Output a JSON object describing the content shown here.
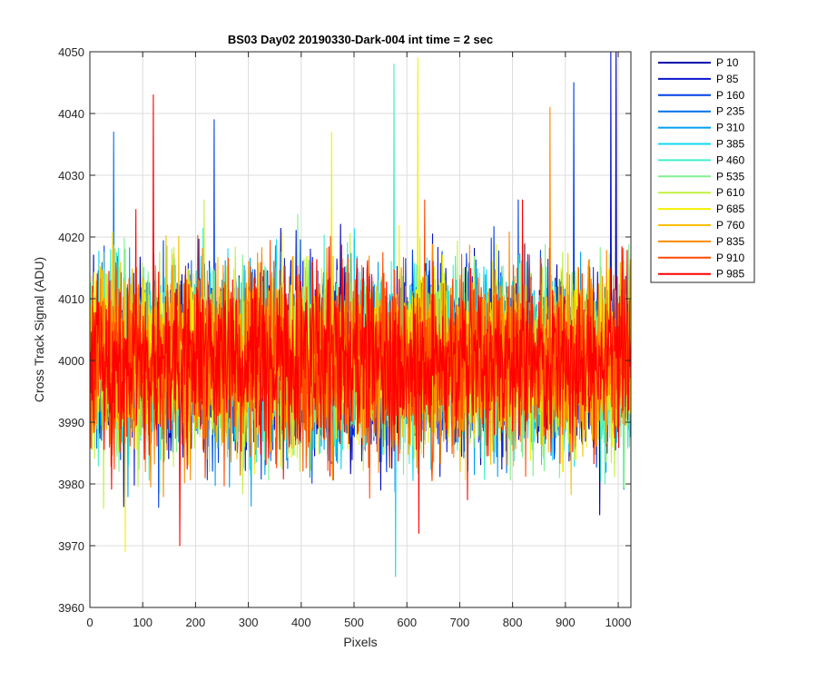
{
  "chart_data": {
    "type": "line",
    "title": "BS03 Day02 20190330-Dark-004 int time = 2 sec",
    "xlabel": "Pixels",
    "ylabel": "Cross Track Signal (ADU)",
    "xlim": [
      0,
      1024
    ],
    "ylim": [
      3960,
      4050
    ],
    "xticks": [
      0,
      100,
      200,
      300,
      400,
      500,
      600,
      700,
      800,
      900,
      1000
    ],
    "yticks": [
      3960,
      3970,
      3980,
      3990,
      4000,
      4010,
      4020,
      4030,
      4040,
      4050
    ],
    "grid": true,
    "legend_location": "outside-right-top",
    "noise": {
      "mean": 4000,
      "std": 7,
      "points_per_series": 1024
    },
    "series": [
      {
        "name": "P 10",
        "color": "#0000aa"
      },
      {
        "name": "P 85",
        "color": "#0a14cc"
      },
      {
        "name": "P 160",
        "color": "#0040e6"
      },
      {
        "name": "P 235",
        "color": "#0070e8"
      },
      {
        "name": "P 310",
        "color": "#00a0f0"
      },
      {
        "name": "P 385",
        "color": "#10d8f0"
      },
      {
        "name": "P 460",
        "color": "#40f0c8"
      },
      {
        "name": "P 535",
        "color": "#80f090"
      },
      {
        "name": "P 610",
        "color": "#c0f040"
      },
      {
        "name": "P 685",
        "color": "#f4f000"
      },
      {
        "name": "P 760",
        "color": "#f8c000"
      },
      {
        "name": "P 835",
        "color": "#ff8800"
      },
      {
        "name": "P 910",
        "color": "#ff4a00"
      },
      {
        "name": "P 985",
        "color": "#ff0000"
      }
    ],
    "spikes": [
      {
        "series": "P 10",
        "x": 995,
        "y": 4050
      },
      {
        "series": "P 85",
        "x": 985,
        "y": 4050
      },
      {
        "series": "P 160",
        "x": 235,
        "y": 4039
      },
      {
        "series": "P 160",
        "x": 915,
        "y": 4045
      },
      {
        "series": "P 235",
        "x": 45,
        "y": 4037
      },
      {
        "series": "P 385",
        "x": 578,
        "y": 3965
      },
      {
        "series": "P 460",
        "x": 575,
        "y": 4048
      },
      {
        "series": "P 685",
        "x": 620,
        "y": 4049
      },
      {
        "series": "P 685",
        "x": 67,
        "y": 3969
      },
      {
        "series": "P 685",
        "x": 457,
        "y": 4037
      },
      {
        "series": "P 835",
        "x": 870,
        "y": 4041
      },
      {
        "series": "P 985",
        "x": 120,
        "y": 4043
      },
      {
        "series": "P 985",
        "x": 170,
        "y": 3970
      },
      {
        "series": "P 985",
        "x": 622,
        "y": 3972
      }
    ]
  }
}
